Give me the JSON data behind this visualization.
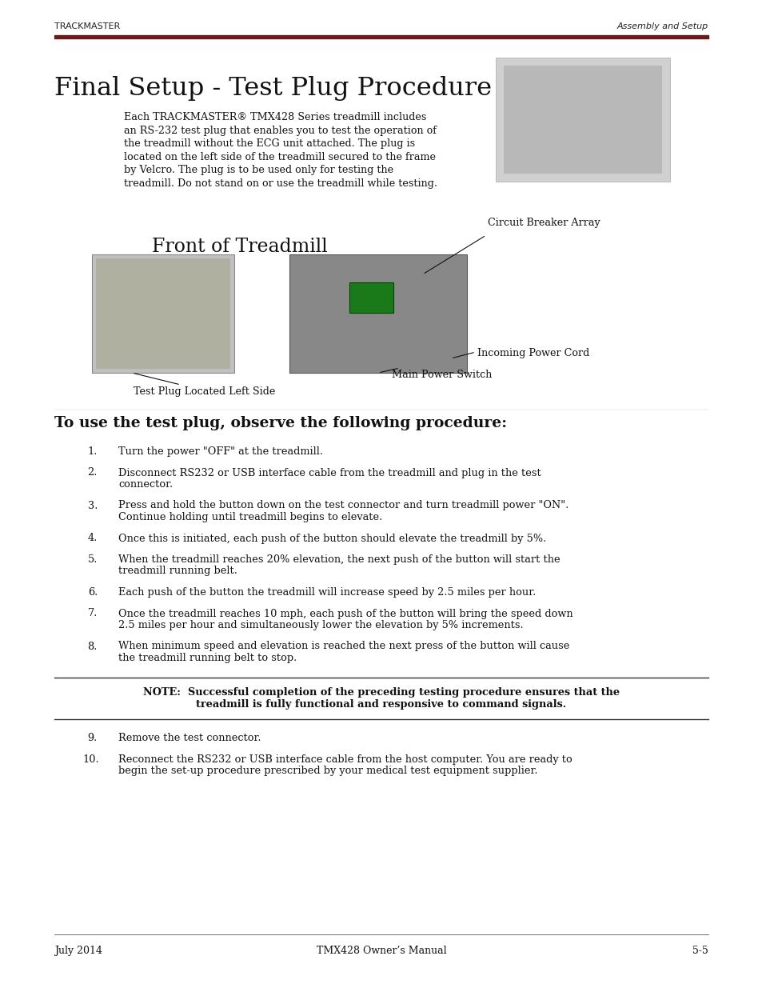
{
  "page_bg": "#ffffff",
  "header_left": "TRACKMASTER",
  "header_right": "Assembly and Setup",
  "header_line_color": "#6B1A1A",
  "title": "Final Setup - Test Plug Procedure",
  "intro_lines": [
    "Each TRACKMASTER® TMX428 Series treadmill includes",
    "an RS-232 test plug that enables you to test the operation of",
    "the treadmill without the ECG unit attached. The plug is",
    "located on the left side of the treadmill secured to the frame",
    "by Velcro. The plug is to be used only for testing the",
    "treadmill. Do not stand on or use the treadmill while testing."
  ],
  "diagram_title": "Front of Treadmill",
  "label_circuit": "Circuit Breaker Array",
  "label_incoming": "Incoming Power Cord",
  "label_test_plug": "Test Plug Located Left Side",
  "label_main_power": "Main Power Switch",
  "procedure_heading": "To use the test plug, observe the following procedure:",
  "steps": [
    [
      "Turn the power \"OFF\" at the treadmill."
    ],
    [
      "Disconnect RS232 or USB interface cable from the treadmill and plug in the test",
      "connector."
    ],
    [
      "Press and hold the button down on the test connector and turn treadmill power \"ON\".",
      "Continue holding until treadmill begins to elevate."
    ],
    [
      "Once this is initiated, each push of the button should elevate the treadmill by 5%."
    ],
    [
      "When the treadmill reaches 20% elevation, the next push of the button will start the",
      "treadmill running belt."
    ],
    [
      "Each push of the button the treadmill will increase speed by 2.5 miles per hour."
    ],
    [
      "Once the treadmill reaches 10 mph, each push of the button will bring the speed down",
      "2.5 miles per hour and simultaneously lower the elevation by 5% increments."
    ],
    [
      "When minimum speed and elevation is reached the next press of the button will cause",
      "the treadmill running belt to stop."
    ]
  ],
  "note_line1": "NOTE:  Successful completion of the preceding testing procedure ensures that the",
  "note_line2": "treadmill is fully functional and responsive to command signals.",
  "step9": "Remove the test connector.",
  "step10_lines": [
    "Reconnect the RS232 or USB interface cable from the host computer. You are ready to",
    "begin the set-up procedure prescribed by your medical test equipment supplier."
  ],
  "footer_left": "July 2014",
  "footer_center": "TMX428 Owner’s Manual",
  "footer_right": "5-5"
}
